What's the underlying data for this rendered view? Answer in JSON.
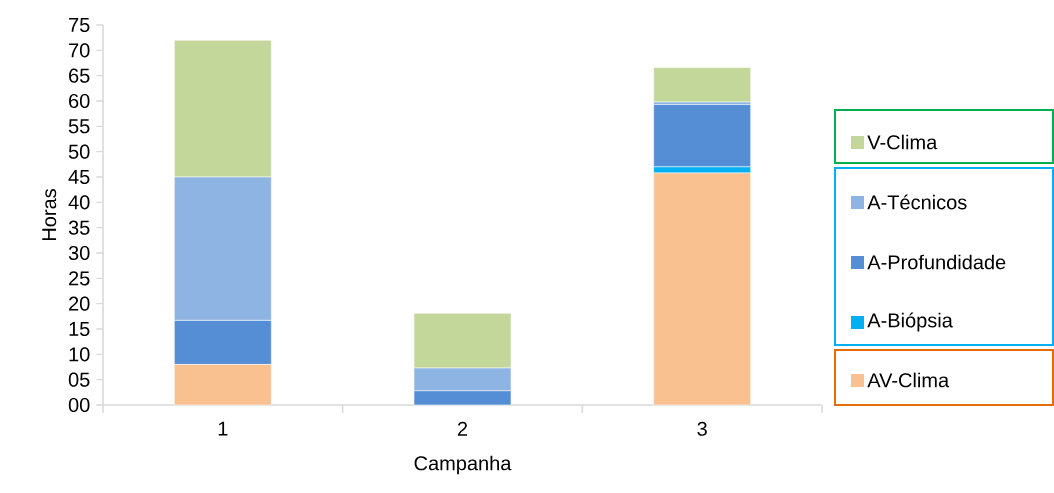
{
  "chart_data": {
    "type": "bar",
    "stacked": true,
    "xlabel": "Campanha",
    "ylabel": "Horas",
    "categories": [
      "1",
      "2",
      "3"
    ],
    "series": [
      {
        "name": "AV-Clima",
        "color": "#f9c090",
        "values": [
          8,
          0,
          45.8
        ]
      },
      {
        "name": "A-Biópsia",
        "color": "#00b0f0",
        "values": [
          0,
          0,
          1.2
        ]
      },
      {
        "name": "A-Profundidade",
        "color": "#558ed5",
        "values": [
          8.7,
          2.8,
          12.3
        ]
      },
      {
        "name": "A-Técnicos",
        "color": "#8eb4e3",
        "values": [
          28.3,
          4.5,
          0.5
        ]
      },
      {
        "name": "V-Clima",
        "color": "#c4d79b",
        "values": [
          27,
          10.8,
          6.8
        ]
      }
    ],
    "ylim": [
      0,
      75
    ],
    "yticks": [
      {
        "value": 0,
        "label": "00"
      },
      {
        "value": 5,
        "label": "05"
      },
      10,
      15,
      20,
      25,
      30,
      35,
      40,
      45,
      50,
      55,
      60,
      65,
      70,
      75
    ],
    "grid": false,
    "legend": "right"
  }
}
